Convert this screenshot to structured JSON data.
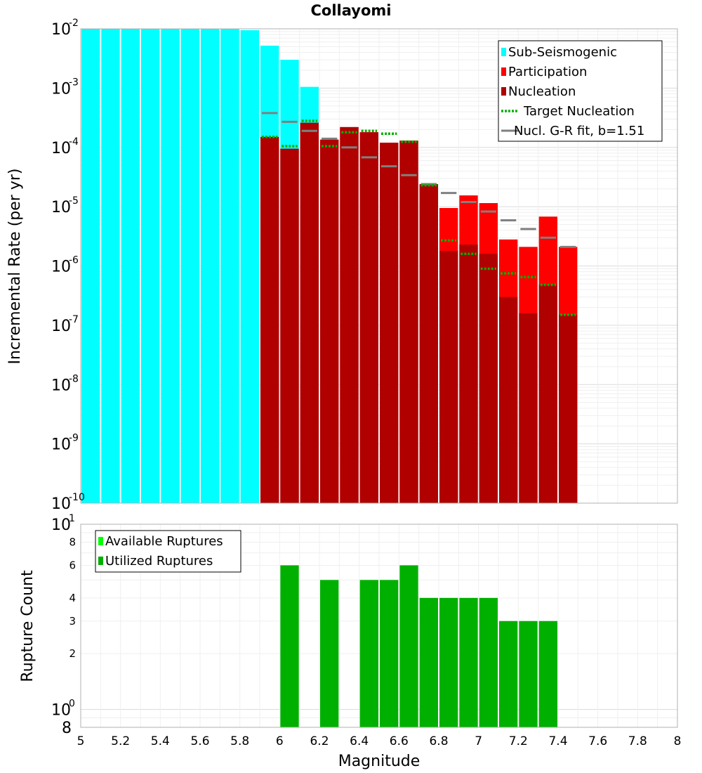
{
  "chart_data": [
    {
      "type": "bar",
      "title": "Collayomi",
      "ylabel": "Incremental Rate (per yr)",
      "xlabel": "",
      "y_scale": "log",
      "ylim": [
        1e-10,
        0.01
      ],
      "xlim": [
        5,
        8
      ],
      "bin_width": 0.1,
      "grid": true,
      "legend_position": "top-right",
      "y_tick_exponents": [
        "-2",
        "-3",
        "-4",
        "-5",
        "-6",
        "-7",
        "-8",
        "-9",
        "-10"
      ],
      "y_tick_base": "10",
      "legend": [
        {
          "label": "Sub-Seismogenic",
          "color": "#00ffff",
          "style": "bar"
        },
        {
          "label": "Participation",
          "color": "#ff0000",
          "style": "bar"
        },
        {
          "label": "Nucleation",
          "color": "#b00000",
          "style": "bar"
        },
        {
          "label": "Target Nucleation",
          "color": "#00b000",
          "style": "dotted"
        },
        {
          "label": "Nucl. G-R fit, b=1.51",
          "color": "#808080",
          "style": "line"
        }
      ],
      "series": [
        {
          "name": "Sub-Seismogenic",
          "color": "#00ffff",
          "x": [
            5.05,
            5.15,
            5.25,
            5.35,
            5.45,
            5.55,
            5.65,
            5.75,
            5.85,
            5.95,
            6.05,
            6.15
          ],
          "values": [
            0.01,
            0.01,
            0.01,
            0.01,
            0.01,
            0.01,
            0.01,
            0.01,
            0.0095,
            0.0052,
            0.003,
            0.00105
          ]
        },
        {
          "name": "Participation",
          "color": "#ff0000",
          "x": [
            5.95,
            6.05,
            6.15,
            6.25,
            6.35,
            6.45,
            6.55,
            6.65,
            6.75,
            6.85,
            6.95,
            7.05,
            7.15,
            7.25,
            7.35,
            7.45
          ],
          "values": [
            0.00015,
            9.5e-05,
            0.00026,
            0.000135,
            0.00022,
            0.00018,
            0.00012,
            0.00013,
            2.4e-05,
            9.5e-06,
            1.55e-05,
            1.15e-05,
            2.8e-06,
            2.1e-06,
            6.8e-06,
            2.1e-06
          ]
        },
        {
          "name": "Nucleation",
          "color": "#b00000",
          "x": [
            5.95,
            6.05,
            6.15,
            6.25,
            6.35,
            6.45,
            6.55,
            6.65,
            6.75,
            6.85,
            6.95,
            7.05,
            7.15,
            7.25,
            7.35,
            7.45
          ],
          "values": [
            0.00015,
            9.5e-05,
            0.00026,
            0.000135,
            0.00022,
            0.00018,
            0.00012,
            0.00013,
            2.4e-05,
            1.8e-06,
            2.3e-06,
            1.6e-06,
            3e-07,
            1.6e-07,
            4.8e-07,
            1.5e-07
          ]
        },
        {
          "name": "Target Nucleation",
          "color": "#00b000",
          "x": [
            5.95,
            6.05,
            6.15,
            6.25,
            6.35,
            6.45,
            6.55,
            6.65,
            6.75,
            6.85,
            6.95,
            7.05,
            7.15,
            7.25,
            7.35,
            7.45
          ],
          "values": [
            0.00015,
            0.000105,
            0.00028,
            0.000105,
            0.00018,
            0.00019,
            0.00017,
            0.000125,
            2.3e-05,
            2.7e-06,
            1.6e-06,
            9e-07,
            7.5e-07,
            6.5e-07,
            4.8e-07,
            1.5e-07
          ]
        },
        {
          "name": "Nucl. G-R fit, b=1.51",
          "color": "#808080",
          "x": [
            5.95,
            6.05,
            6.15,
            6.25,
            6.35,
            6.45,
            6.55,
            6.65,
            6.75,
            6.85,
            6.95,
            7.05,
            7.15,
            7.25,
            7.35,
            7.45
          ],
          "values": [
            0.00038,
            0.00027,
            0.00019,
            0.00014,
            0.0001,
            6.8e-05,
            4.8e-05,
            3.4e-05,
            2.4e-05,
            1.7e-05,
            1.2e-05,
            8.3e-06,
            5.9e-06,
            4.2e-06,
            3e-06,
            2.1e-06
          ]
        }
      ]
    },
    {
      "type": "bar",
      "title": "",
      "xlabel": "Magnitude",
      "ylabel": "Rupture Count",
      "y_scale": "log",
      "ylim": [
        0.8,
        10
      ],
      "xlim": [
        5,
        8
      ],
      "bin_width": 0.1,
      "grid": true,
      "legend_position": "top-left",
      "x_ticks": [
        "5",
        "5.2",
        "5.4",
        "5.6",
        "5.8",
        "6",
        "6.2",
        "6.4",
        "6.6",
        "6.8",
        "7",
        "7.2",
        "7.4",
        "7.6",
        "7.8",
        "8"
      ],
      "y_tick_labels": {
        "top_base": "10",
        "top_exp": "1",
        "mid_base": "10",
        "mid_exp": "0",
        "bottom": "8",
        "minor": [
          "8",
          "6",
          "4",
          "3",
          "2"
        ]
      },
      "legend": [
        {
          "label": "Available Ruptures",
          "color": "#00ff00",
          "style": "bar"
        },
        {
          "label": "Utilized Ruptures",
          "color": "#00b000",
          "style": "bar"
        }
      ],
      "series": [
        {
          "name": "Utilized Ruptures",
          "color": "#00b000",
          "x": [
            6.05,
            6.25,
            6.45,
            6.55,
            6.65,
            6.75,
            6.85,
            6.95,
            7.05,
            7.15,
            7.25,
            7.35
          ],
          "values": [
            6,
            5,
            5,
            5,
            6,
            4,
            4,
            4,
            4,
            3,
            3,
            3
          ]
        }
      ]
    }
  ]
}
